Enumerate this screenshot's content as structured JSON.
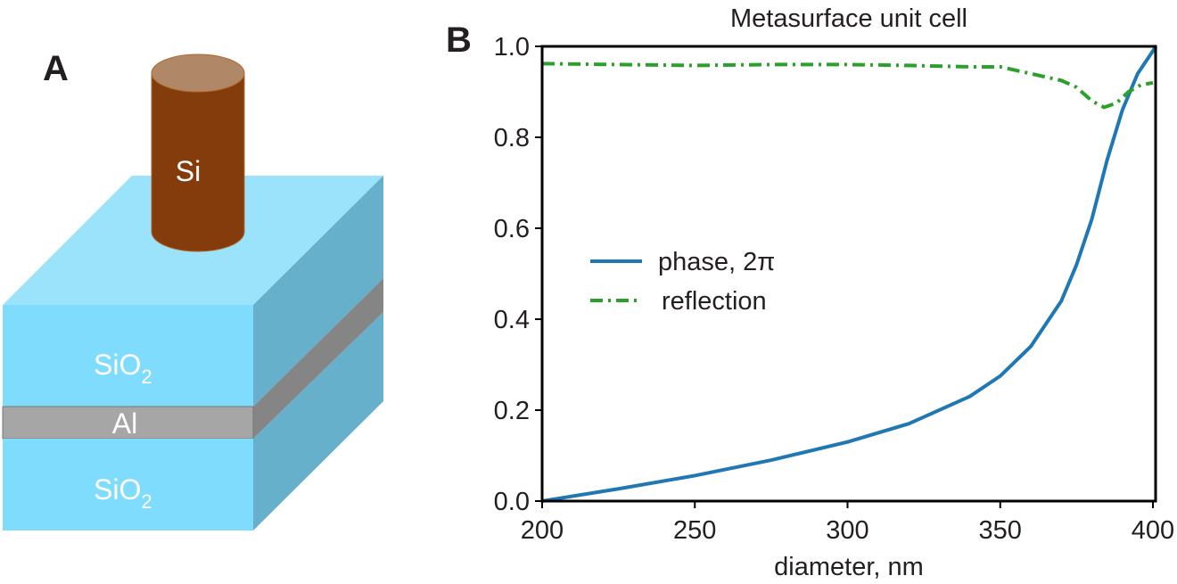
{
  "panel_a": {
    "label": "A",
    "layers": {
      "pillar": "Si",
      "top_layer": "SiO",
      "top_layer_sub": "2",
      "metal": "Al",
      "bottom_layer": "SiO",
      "bottom_layer_sub": "2"
    },
    "colors": {
      "si": "#843c0c",
      "si_top": "#b08868",
      "sio2_front": "#80dcfc",
      "sio2_top": "#9ae3fb",
      "sio2_side": "#67b0cb",
      "al_front": "#a6a6a6",
      "al_side": "#858585"
    }
  },
  "panel_b": {
    "label": "B"
  },
  "chart_data": {
    "type": "line",
    "title": "Metasurface unit cell",
    "xlabel": "diameter, nm",
    "ylabel": "",
    "xlim": [
      200,
      402
    ],
    "ylim": [
      0,
      1.0
    ],
    "xticks": [
      "200",
      "250",
      "300",
      "350",
      "400"
    ],
    "yticks": [
      "0.0",
      "0.2",
      "0.4",
      "0.6",
      "0.8",
      "1.0"
    ],
    "grid": false,
    "legend_position": "center-left",
    "series": [
      {
        "name": "phase, 2π",
        "color": "#1f77b4",
        "style": "solid",
        "x": [
          200,
          225,
          250,
          275,
          300,
          320,
          340,
          350,
          360,
          370,
          375,
          380,
          385,
          390,
          395,
          400,
          402
        ],
        "y": [
          0.0,
          0.027,
          0.056,
          0.09,
          0.13,
          0.17,
          0.23,
          0.275,
          0.34,
          0.44,
          0.52,
          0.62,
          0.75,
          0.86,
          0.94,
          0.99,
          1.0
        ]
      },
      {
        "name": "reflection",
        "color": "#2ca02c",
        "style": "dashdot",
        "x": [
          200,
          225,
          250,
          275,
          300,
          320,
          340,
          350,
          360,
          370,
          375,
          380,
          384,
          388,
          392,
          396,
          400
        ],
        "y": [
          0.962,
          0.96,
          0.958,
          0.96,
          0.96,
          0.958,
          0.955,
          0.955,
          0.94,
          0.925,
          0.91,
          0.88,
          0.866,
          0.875,
          0.9,
          0.915,
          0.92
        ]
      }
    ]
  }
}
